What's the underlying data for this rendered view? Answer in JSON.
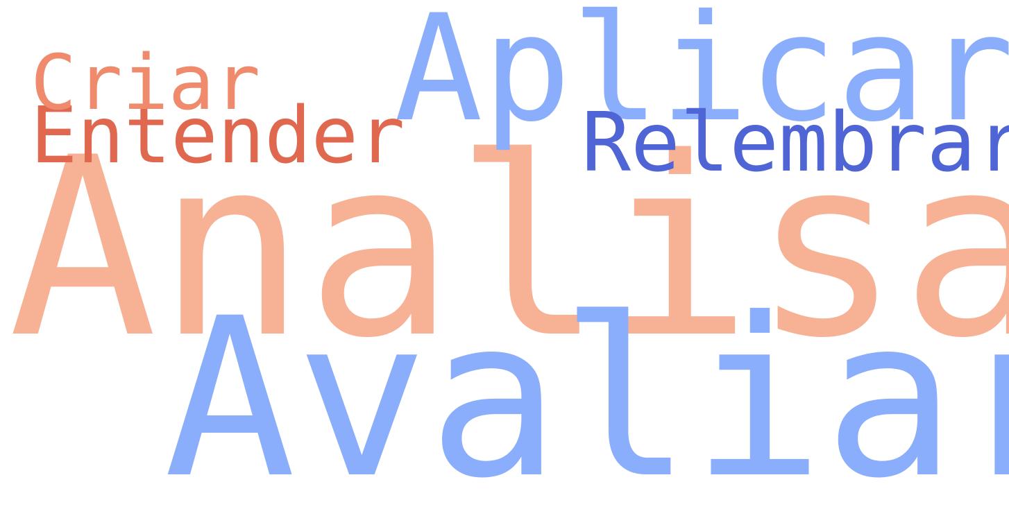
{
  "word_cloud": {
    "words": [
      {
        "id": "analisar",
        "text": "Analisar",
        "color": "#f7b194"
      },
      {
        "id": "avaliar",
        "text": "Avaliar",
        "color": "#8aaefc"
      },
      {
        "id": "aplicar",
        "text": "Aplicar",
        "color": "#8aaefc"
      },
      {
        "id": "relembrar",
        "text": "Relembrar",
        "color": "#4f65d6"
      },
      {
        "id": "entender",
        "text": "Entender",
        "color": "#e0684f"
      },
      {
        "id": "criar",
        "text": "Criar",
        "color": "#ef8a6c"
      }
    ]
  }
}
